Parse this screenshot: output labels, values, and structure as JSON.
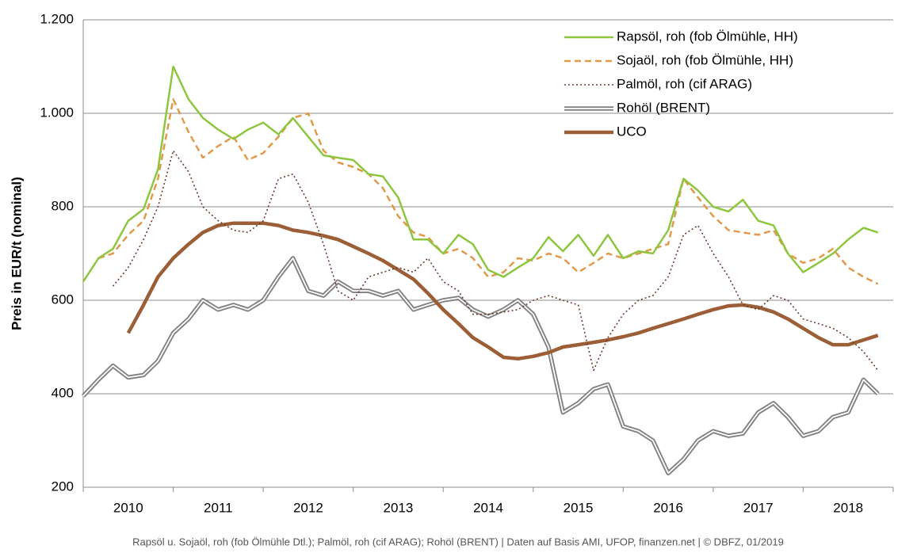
{
  "chart_data": {
    "type": "line",
    "y_label": "Preis in EUR/t (nominal)",
    "footnote": "Rapsöl u. Sojaöl, roh (fob Ölmühle Dtl.); Palmöl, roh (cif ARAG); Rohöl (BRENT) |  Daten auf Basis AMI, UFOP, finanzen.net | © DBFZ, 01/2019",
    "categories": [
      "2010",
      "2011",
      "2012",
      "2013",
      "2014",
      "2015",
      "2016",
      "2017",
      "2018"
    ],
    "xlim": [
      2010,
      2019
    ],
    "ylim": [
      200,
      1200
    ],
    "yticks": [
      200,
      400,
      600,
      800,
      {
        "value": 1000,
        "label": "1.000"
      },
      {
        "value": 1200,
        "label": "1.200"
      }
    ],
    "grid": true,
    "legend": "top-right",
    "x": [
      2010,
      2010.17,
      2010.33,
      2010.5,
      2010.67,
      2010.83,
      2011,
      2011.17,
      2011.33,
      2011.5,
      2011.67,
      2011.83,
      2012,
      2012.17,
      2012.33,
      2012.5,
      2012.67,
      2012.83,
      2013,
      2013.17,
      2013.33,
      2013.5,
      2013.67,
      2013.83,
      2014,
      2014.17,
      2014.33,
      2014.5,
      2014.67,
      2014.83,
      2015,
      2015.17,
      2015.33,
      2015.5,
      2015.67,
      2015.83,
      2016,
      2016.17,
      2016.33,
      2016.5,
      2016.67,
      2016.83,
      2017,
      2017.17,
      2017.33,
      2017.5,
      2017.67,
      2017.83,
      2018,
      2018.17,
      2018.33,
      2018.5,
      2018.67,
      2018.83
    ],
    "series": [
      {
        "name": "Rapsöl, roh (fob Ölmühle, HH)",
        "color": "#8dc63f",
        "style": "solid",
        "values": [
          640,
          690,
          710,
          770,
          795,
          880,
          1100,
          1030,
          990,
          965,
          945,
          965,
          980,
          955,
          990,
          950,
          910,
          905,
          900,
          870,
          865,
          820,
          730,
          730,
          700,
          740,
          720,
          665,
          650,
          670,
          690,
          735,
          705,
          740,
          695,
          740,
          690,
          705,
          700,
          750,
          860,
          835,
          800,
          790,
          815,
          770,
          760,
          700,
          660,
          680,
          700,
          730,
          755,
          745
        ]
      },
      {
        "name": "Sojaöl, roh (fob Ölmühle, HH)",
        "color": "#e09a4a",
        "style": "dashed",
        "values": [
          null,
          690,
          700,
          740,
          770,
          860,
          1030,
          960,
          905,
          930,
          950,
          900,
          915,
          950,
          990,
          1000,
          920,
          895,
          885,
          870,
          840,
          780,
          745,
          735,
          700,
          710,
          690,
          650,
          660,
          690,
          685,
          700,
          690,
          660,
          680,
          700,
          690,
          700,
          710,
          720,
          860,
          820,
          780,
          750,
          745,
          740,
          750,
          700,
          680,
          690,
          710,
          670,
          650,
          635
        ]
      },
      {
        "name": "Palmöl, roh (cif ARAG)",
        "color": "#6b3a2a",
        "style": "dotted",
        "values": [
          null,
          null,
          630,
          670,
          730,
          800,
          920,
          875,
          800,
          770,
          750,
          745,
          770,
          860,
          870,
          810,
          720,
          620,
          600,
          650,
          660,
          670,
          660,
          690,
          640,
          620,
          570,
          570,
          575,
          580,
          600,
          610,
          600,
          590,
          450,
          520,
          570,
          600,
          610,
          650,
          740,
          760,
          700,
          650,
          590,
          580,
          610,
          600,
          560,
          550,
          540,
          520,
          490,
          450
        ]
      },
      {
        "name": "Rohöl (BRENT)",
        "color": "#808080",
        "style": "double",
        "values": [
          395,
          430,
          460,
          435,
          440,
          470,
          530,
          560,
          600,
          580,
          590,
          580,
          600,
          650,
          690,
          620,
          610,
          640,
          620,
          620,
          610,
          620,
          580,
          590,
          600,
          605,
          580,
          565,
          580,
          600,
          570,
          500,
          360,
          380,
          410,
          420,
          330,
          320,
          300,
          230,
          260,
          300,
          320,
          310,
          315,
          360,
          380,
          350,
          310,
          320,
          350,
          360,
          430,
          400
        ]
      },
      {
        "name": "UCO",
        "color": "#9b5e36",
        "style": "thick",
        "values": [
          null,
          null,
          null,
          530,
          590,
          650,
          690,
          720,
          745,
          760,
          765,
          765,
          765,
          760,
          750,
          745,
          738,
          730,
          715,
          700,
          685,
          665,
          645,
          615,
          580,
          550,
          520,
          500,
          478,
          475,
          480,
          488,
          500,
          505,
          510,
          515,
          522,
          530,
          540,
          550,
          560,
          570,
          580,
          588,
          590,
          585,
          575,
          560,
          540,
          520,
          505,
          505,
          515,
          525
        ]
      }
    ]
  }
}
